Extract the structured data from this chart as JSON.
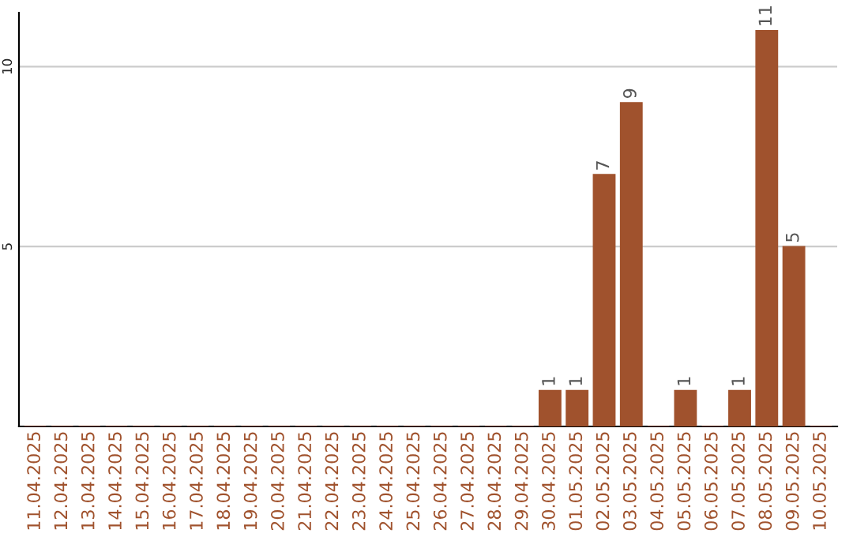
{
  "chart_data": {
    "type": "bar",
    "categories": [
      "11.04.2025",
      "12.04.2025",
      "13.04.2025",
      "14.04.2025",
      "15.04.2025",
      "16.04.2025",
      "17.04.2025",
      "18.04.2025",
      "19.04.2025",
      "20.04.2025",
      "21.04.2025",
      "22.04.2025",
      "23.04.2025",
      "24.04.2025",
      "25.04.2025",
      "26.04.2025",
      "27.04.2025",
      "28.04.2025",
      "29.04.2025",
      "30.04.2025",
      "01.05.2025",
      "02.05.2025",
      "03.05.2025",
      "04.05.2025",
      "05.05.2025",
      "06.05.2025",
      "07.05.2025",
      "08.05.2025",
      "09.05.2025",
      "10.05.2025"
    ],
    "values": [
      0,
      0,
      0,
      0,
      0,
      0,
      0,
      0,
      0,
      0,
      0,
      0,
      0,
      0,
      0,
      0,
      0,
      0,
      0,
      1,
      1,
      7,
      9,
      0,
      1,
      0,
      1,
      11,
      5,
      0
    ],
    "value_labels": [
      null,
      null,
      null,
      null,
      null,
      null,
      null,
      null,
      null,
      null,
      null,
      null,
      null,
      null,
      null,
      null,
      null,
      null,
      null,
      "1",
      "1",
      "7",
      "9",
      null,
      "1",
      null,
      "1",
      "11",
      "5",
      null
    ],
    "color": "#a0522d",
    "ylim": [
      0,
      11.5
    ],
    "yticks": [
      5,
      10
    ],
    "grid": "y"
  }
}
